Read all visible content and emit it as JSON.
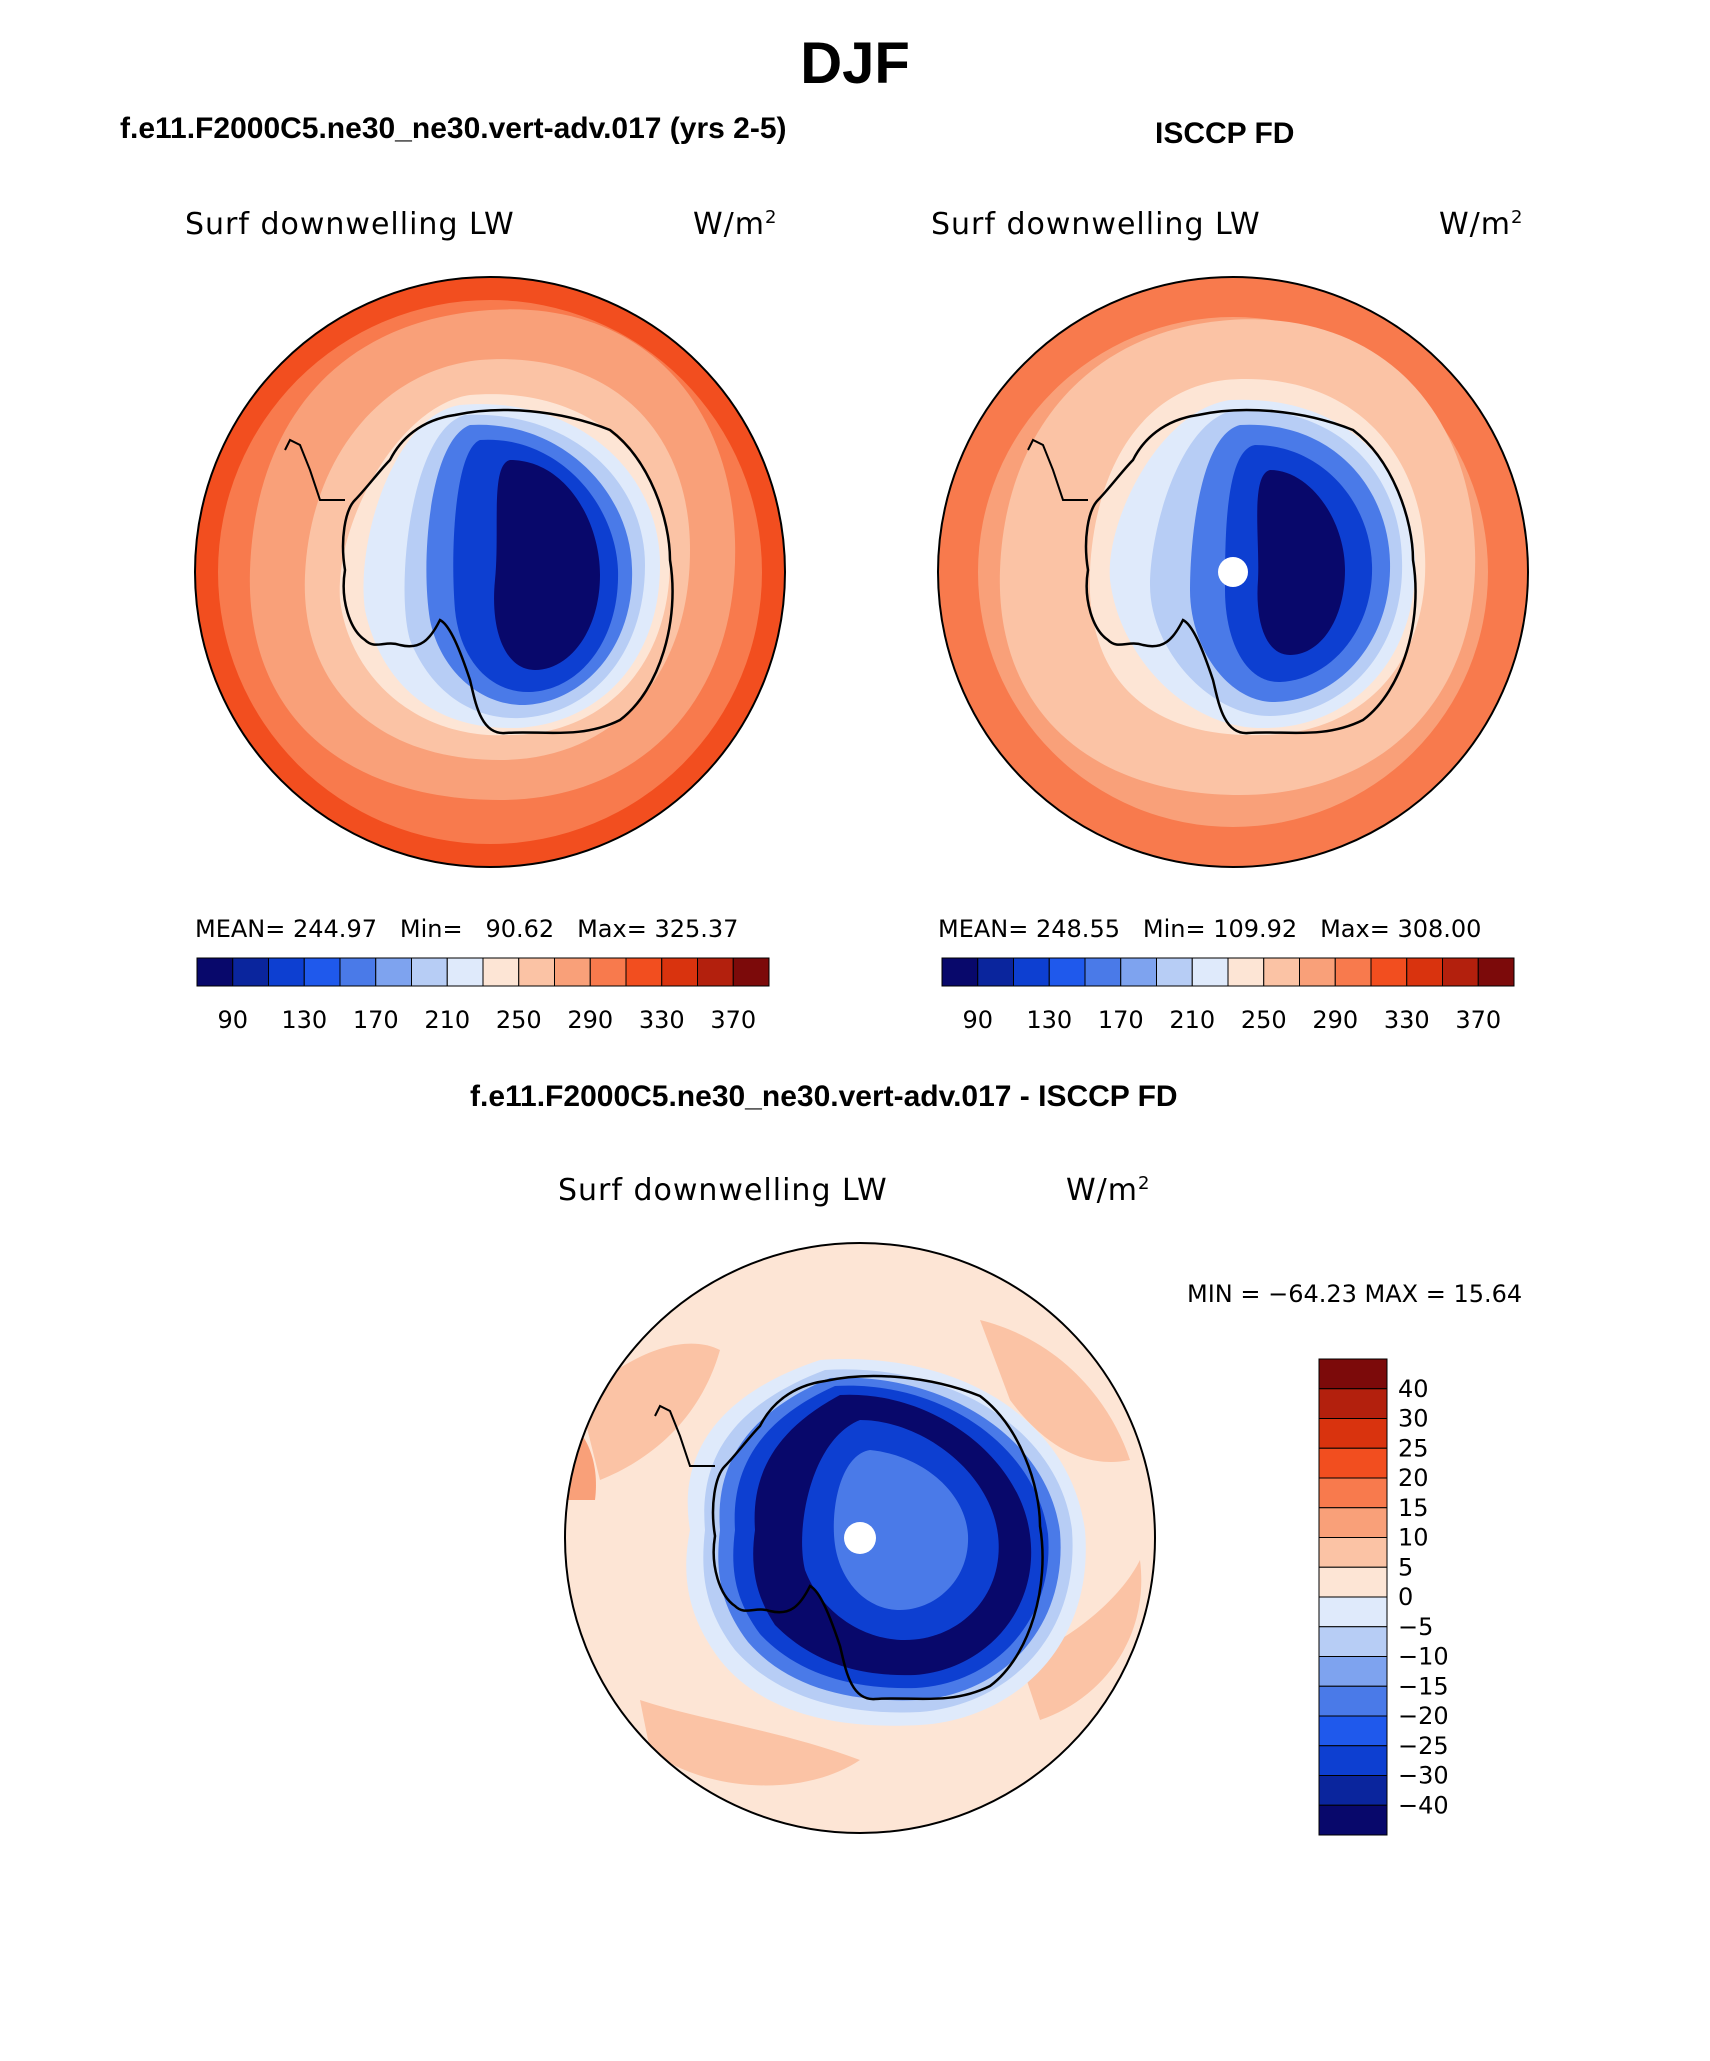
{
  "title": "DJF",
  "panels": {
    "model": {
      "header": "f.e11.F2000C5.ne30_ne30.vert-adv.017 (yrs 2-5)",
      "variable": "Surf downwelling LW",
      "units": "W/m",
      "units_exp": "2",
      "mean_label": "MEAN=",
      "mean": "244.97",
      "min_label": "Min=",
      "min": "90.62",
      "max_label": "Max=",
      "max": "325.37"
    },
    "obs": {
      "header": "ISCCP FD",
      "variable": "Surf downwelling LW",
      "units": "W/m",
      "units_exp": "2",
      "mean_label": "MEAN=",
      "mean": "248.55",
      "min_label": "Min=",
      "min": "109.92",
      "max_label": "Max=",
      "max": "308.00"
    },
    "diff": {
      "header": "f.e11.F2000C5.ne30_ne30.vert-adv.017 - ISCCP FD",
      "variable": "Surf downwelling LW",
      "units": "W/m",
      "units_exp": "2",
      "minmax_text": "MIN = −64.23 MAX =   15.64"
    }
  },
  "abs_colorbar": {
    "ticks": [
      "90",
      "130",
      "170",
      "210",
      "250",
      "290",
      "330",
      "370"
    ],
    "colors": [
      "#08086b",
      "#0a259d",
      "#0d3fd1",
      "#1f59ec",
      "#4a7ae8",
      "#7ea3ef",
      "#b7cdf5",
      "#dfeafb",
      "#fde5d5",
      "#fbc3a5",
      "#f9a079",
      "#f87a4d",
      "#f24e1f",
      "#d9330e",
      "#b3200d",
      "#7c0a0a"
    ]
  },
  "diff_colorbar": {
    "ticks": [
      "40",
      "30",
      "25",
      "20",
      "15",
      "10",
      "5",
      "0",
      "−5",
      "−10",
      "−15",
      "−20",
      "−25",
      "−30",
      "−40"
    ],
    "colors": [
      "#7c0a0a",
      "#b3200d",
      "#d9330e",
      "#f24e1f",
      "#f87a4d",
      "#f9a079",
      "#fbc3a5",
      "#fde5d5",
      "#dfeafb",
      "#b7cdf5",
      "#7ea3ef",
      "#4a7ae8",
      "#1f59ec",
      "#0d3fd1",
      "#0a259d",
      "#08086b"
    ]
  },
  "map_colors": {
    "deep_blue": "#08086b",
    "blue": "#0d3fd1",
    "mid_blue": "#4a7ae8",
    "light_blue": "#b7cdf5",
    "pale_blue": "#dfeafb",
    "pale_orange": "#fde5d5",
    "peach": "#fbc3a5",
    "salmon": "#f9a079",
    "orange": "#f87a4d",
    "red_orange": "#f24e1f"
  }
}
